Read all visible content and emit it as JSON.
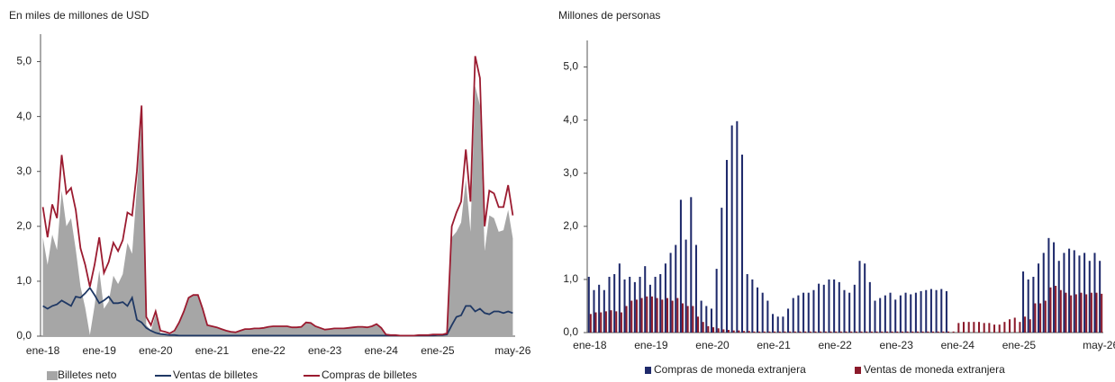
{
  "chart_data": [
    {
      "type": "line",
      "ylabel": "En miles de millones de USD",
      "categories": [
        "ene-18",
        null,
        null,
        null,
        null,
        null,
        null,
        null,
        null,
        null,
        null,
        null,
        "ene-19",
        null,
        null,
        null,
        null,
        null,
        null,
        null,
        null,
        null,
        null,
        null,
        "ene-20",
        null,
        null,
        null,
        null,
        null,
        null,
        null,
        null,
        null,
        null,
        null,
        "ene-21",
        null,
        null,
        null,
        null,
        null,
        null,
        null,
        null,
        null,
        null,
        null,
        "ene-22",
        null,
        null,
        null,
        null,
        null,
        null,
        null,
        null,
        null,
        null,
        null,
        "ene-23",
        null,
        null,
        null,
        null,
        null,
        null,
        null,
        null,
        null,
        null,
        null,
        "ene-24",
        null,
        null,
        null,
        null,
        null,
        null,
        null,
        null,
        null,
        null,
        null,
        "ene-25",
        null,
        null,
        null,
        null,
        null,
        null,
        null,
        null,
        null,
        null,
        null,
        null,
        null,
        null,
        null,
        "may-26"
      ],
      "ylim": [
        0,
        5.5
      ],
      "yticks": [
        {
          "value": 0,
          "label": "0,0"
        },
        {
          "value": 1,
          "label": "1,0"
        },
        {
          "value": 2,
          "label": "2,0"
        },
        {
          "value": 3,
          "label": "3,0"
        },
        {
          "value": 4,
          "label": "4,0"
        },
        {
          "value": 5,
          "label": "5,0"
        }
      ],
      "series": [
        {
          "name": "Billetes neto",
          "color": "#a6a6a6",
          "style": "area",
          "values": [
            1.8,
            1.3,
            1.85,
            1.57,
            2.65,
            2.0,
            2.15,
            1.58,
            0.9,
            0.52,
            0.02,
            0.55,
            1.2,
            0.5,
            0.63,
            1.1,
            0.95,
            1.13,
            1.7,
            1.5,
            2.7,
            3.95,
            0.2,
            0.1,
            0.39,
            0.06,
            0.05,
            0.03,
            0.08,
            0.24,
            0.44,
            0.69,
            0.74,
            0.74,
            0.49,
            0.19,
            0.17,
            0.15,
            0.12,
            0.09,
            0.07,
            0.06,
            0.09,
            0.12,
            0.12,
            0.13,
            0.13,
            0.14,
            0.16,
            0.17,
            0.17,
            0.17,
            0.17,
            0.15,
            0.15,
            0.16,
            0.24,
            0.23,
            0.17,
            0.14,
            0.11,
            0.12,
            0.13,
            0.13,
            0.13,
            0.14,
            0.15,
            0.16,
            0.16,
            0.15,
            0.17,
            0.21,
            0.14,
            0.02,
            0.01,
            0.01,
            0,
            0,
            0,
            0,
            0.01,
            0.01,
            0.01,
            0.02,
            0.01,
            0.01,
            0.02,
            1.8,
            1.9,
            2.07,
            2.85,
            1.9,
            4.55,
            4.2,
            1.55,
            2.2,
            2.15,
            1.9,
            1.93,
            2.3,
            1.78
          ]
        },
        {
          "name": "Ventas de billetes",
          "color": "#1f3864",
          "style": "line",
          "values": [
            0.55,
            0.5,
            0.55,
            0.58,
            0.65,
            0.6,
            0.55,
            0.72,
            0.7,
            0.78,
            0.88,
            0.75,
            0.6,
            0.65,
            0.72,
            0.6,
            0.6,
            0.62,
            0.55,
            0.7,
            0.3,
            0.25,
            0.15,
            0.1,
            0.06,
            0.04,
            0.03,
            0.02,
            0.02,
            0.01,
            0.01,
            0.01,
            0.01,
            0.01,
            0.01,
            0.01,
            0.01,
            0.01,
            0.01,
            0.01,
            0.01,
            0.01,
            0.01,
            0.01,
            0.01,
            0.01,
            0.01,
            0.01,
            0.01,
            0.01,
            0.01,
            0.01,
            0.01,
            0.01,
            0.01,
            0.01,
            0.01,
            0.01,
            0.01,
            0.01,
            0.01,
            0.01,
            0.01,
            0.01,
            0.01,
            0.01,
            0.01,
            0.01,
            0.01,
            0.01,
            0.01,
            0.01,
            0.01,
            0.01,
            0.01,
            0.01,
            0.01,
            0.01,
            0.01,
            0.01,
            0.01,
            0.01,
            0.01,
            0.01,
            0.02,
            0.02,
            0.03,
            0.2,
            0.35,
            0.38,
            0.55,
            0.55,
            0.45,
            0.5,
            0.42,
            0.4,
            0.45,
            0.45,
            0.42,
            0.45,
            0.42
          ]
        },
        {
          "name": "Compras de billetes",
          "color": "#9b1b30",
          "style": "line",
          "values": [
            2.35,
            1.8,
            2.4,
            2.15,
            3.3,
            2.6,
            2.7,
            2.3,
            1.6,
            1.3,
            0.9,
            1.3,
            1.8,
            1.15,
            1.35,
            1.7,
            1.55,
            1.75,
            2.25,
            2.2,
            3.0,
            4.2,
            0.35,
            0.2,
            0.45,
            0.1,
            0.08,
            0.05,
            0.1,
            0.25,
            0.45,
            0.7,
            0.75,
            0.75,
            0.5,
            0.2,
            0.18,
            0.16,
            0.13,
            0.1,
            0.08,
            0.07,
            0.1,
            0.13,
            0.13,
            0.14,
            0.14,
            0.15,
            0.17,
            0.18,
            0.18,
            0.18,
            0.18,
            0.16,
            0.16,
            0.17,
            0.25,
            0.24,
            0.18,
            0.15,
            0.12,
            0.13,
            0.14,
            0.14,
            0.14,
            0.15,
            0.16,
            0.17,
            0.17,
            0.16,
            0.18,
            0.22,
            0.15,
            0.03,
            0.02,
            0.02,
            0.01,
            0.01,
            0.01,
            0.01,
            0.02,
            0.02,
            0.02,
            0.03,
            0.03,
            0.03,
            0.05,
            2.0,
            2.25,
            2.45,
            3.4,
            2.45,
            5.1,
            4.7,
            2.0,
            2.65,
            2.6,
            2.35,
            2.35,
            2.75,
            2.2
          ]
        }
      ]
    },
    {
      "type": "bar",
      "ylabel": "Millones de personas",
      "categories": [
        "ene-18",
        null,
        null,
        null,
        null,
        null,
        null,
        null,
        null,
        null,
        null,
        null,
        "ene-19",
        null,
        null,
        null,
        null,
        null,
        null,
        null,
        null,
        null,
        null,
        null,
        "ene-20",
        null,
        null,
        null,
        null,
        null,
        null,
        null,
        null,
        null,
        null,
        null,
        "ene-21",
        null,
        null,
        null,
        null,
        null,
        null,
        null,
        null,
        null,
        null,
        null,
        "ene-22",
        null,
        null,
        null,
        null,
        null,
        null,
        null,
        null,
        null,
        null,
        null,
        "ene-23",
        null,
        null,
        null,
        null,
        null,
        null,
        null,
        null,
        null,
        null,
        null,
        "ene-24",
        null,
        null,
        null,
        null,
        null,
        null,
        null,
        null,
        null,
        null,
        null,
        "ene-25",
        null,
        null,
        null,
        null,
        null,
        null,
        null,
        null,
        null,
        null,
        null,
        null,
        null,
        null,
        null,
        "may-26"
      ],
      "ylim": [
        0,
        5.5
      ],
      "yticks": [
        {
          "value": 0,
          "label": "0,0"
        },
        {
          "value": 1,
          "label": "1,0"
        },
        {
          "value": 2,
          "label": "2,0"
        },
        {
          "value": 3,
          "label": "3,0"
        },
        {
          "value": 4,
          "label": "4,0"
        },
        {
          "value": 5,
          "label": "5,0"
        }
      ],
      "series": [
        {
          "name": "Compras de moneda extranjera",
          "color": "#1f2a6b",
          "values": [
            1.05,
            0.8,
            0.9,
            0.8,
            1.05,
            1.1,
            1.3,
            1.0,
            1.05,
            0.95,
            1.05,
            1.25,
            0.9,
            1.05,
            1.1,
            1.3,
            1.5,
            1.65,
            2.5,
            1.75,
            2.55,
            1.65,
            0.6,
            0.5,
            0.45,
            1.2,
            2.35,
            3.25,
            3.9,
            3.98,
            3.35,
            1.1,
            1.0,
            0.85,
            0.75,
            0.6,
            0.35,
            0.3,
            0.3,
            0.45,
            0.65,
            0.7,
            0.75,
            0.75,
            0.8,
            0.92,
            0.9,
            1.0,
            1.0,
            0.95,
            0.8,
            0.75,
            0.9,
            1.35,
            1.3,
            0.95,
            0.6,
            0.65,
            0.7,
            0.75,
            0.62,
            0.7,
            0.75,
            0.72,
            0.75,
            0.78,
            0.8,
            0.82,
            0.8,
            0.82,
            0.78,
            0,
            0,
            0,
            0,
            0,
            0,
            0,
            0,
            0,
            0,
            0,
            0,
            0,
            0,
            1.15,
            1.0,
            1.05,
            1.3,
            1.5,
            1.78,
            1.7,
            1.35,
            1.5,
            1.58,
            1.55,
            1.45,
            1.5,
            1.35,
            1.5,
            1.35
          ]
        },
        {
          "name": "Ventas de moneda extranjera",
          "color": "#8b1a2b",
          "values": [
            0.35,
            0.38,
            0.38,
            0.4,
            0.42,
            0.4,
            0.38,
            0.5,
            0.6,
            0.62,
            0.65,
            0.68,
            0.68,
            0.65,
            0.62,
            0.65,
            0.6,
            0.65,
            0.55,
            0.5,
            0.5,
            0.3,
            0.2,
            0.12,
            0.1,
            0.08,
            0.06,
            0.05,
            0.04,
            0.04,
            0.03,
            0.03,
            0.02,
            0.02,
            0.02,
            0.02,
            0.02,
            0.02,
            0.02,
            0.02,
            0.02,
            0.02,
            0.02,
            0.02,
            0.02,
            0.02,
            0.02,
            0.02,
            0.02,
            0.02,
            0.02,
            0.02,
            0.02,
            0.02,
            0.02,
            0.02,
            0.02,
            0.02,
            0.02,
            0.02,
            0.02,
            0.02,
            0.02,
            0.02,
            0.02,
            0.02,
            0.02,
            0.02,
            0.02,
            0.02,
            0.02,
            0.02,
            0.18,
            0.2,
            0.2,
            0.2,
            0.2,
            0.18,
            0.18,
            0.15,
            0.15,
            0.2,
            0.25,
            0.28,
            0.2,
            0.3,
            0.25,
            0.55,
            0.55,
            0.6,
            0.85,
            0.88,
            0.8,
            0.75,
            0.7,
            0.72,
            0.75,
            0.72,
            0.75,
            0.75,
            0.73
          ]
        }
      ]
    }
  ]
}
